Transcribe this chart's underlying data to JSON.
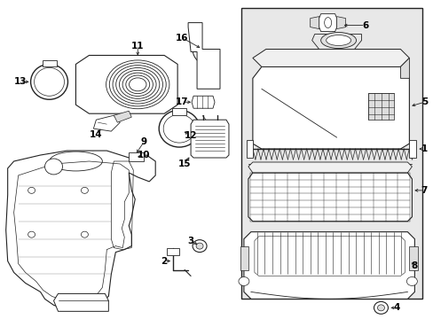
{
  "bg_color": "#ffffff",
  "line_color": "#222222",
  "box_fill": "#eeeeee",
  "figsize": [
    4.89,
    3.6
  ],
  "dpi": 100
}
